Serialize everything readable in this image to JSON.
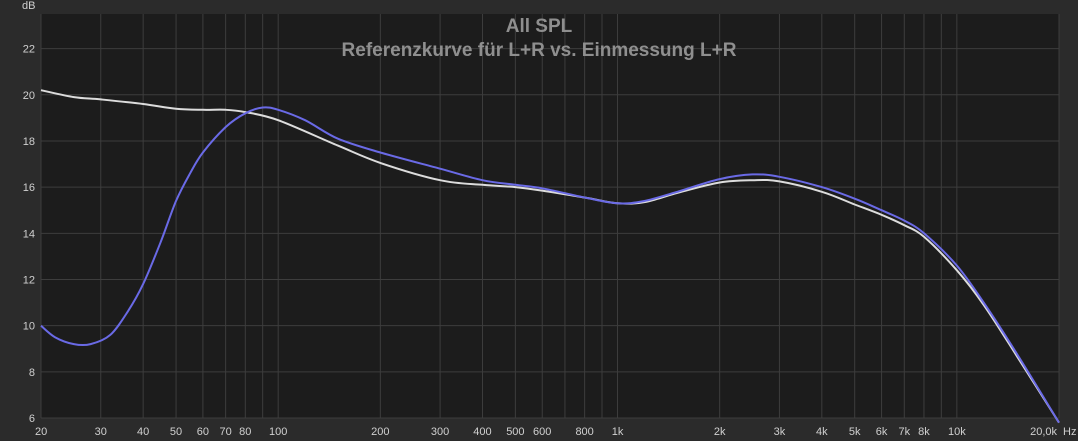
{
  "chart_data": {
    "type": "line",
    "title": "All SPL",
    "subtitle": "Referenzkurve für L+R vs. Einmessung L+R",
    "ylabel": "dB",
    "xunit": "Hz",
    "xscale": "log",
    "xlim": [
      20,
      20000
    ],
    "ylim": [
      6,
      23.5
    ],
    "grid": true,
    "x_tick_labels": [
      {
        "v": 20,
        "t": "20"
      },
      {
        "v": 30,
        "t": "30"
      },
      {
        "v": 40,
        "t": "40"
      },
      {
        "v": 50,
        "t": "50"
      },
      {
        "v": 60,
        "t": "60"
      },
      {
        "v": 70,
        "t": "70"
      },
      {
        "v": 80,
        "t": "80"
      },
      {
        "v": 100,
        "t": "100"
      },
      {
        "v": 200,
        "t": "200"
      },
      {
        "v": 300,
        "t": "300"
      },
      {
        "v": 400,
        "t": "400"
      },
      {
        "v": 500,
        "t": "500"
      },
      {
        "v": 600,
        "t": "600"
      },
      {
        "v": 800,
        "t": "800"
      },
      {
        "v": 1000,
        "t": "1k"
      },
      {
        "v": 2000,
        "t": "2k"
      },
      {
        "v": 3000,
        "t": "3k"
      },
      {
        "v": 4000,
        "t": "4k"
      },
      {
        "v": 5000,
        "t": "5k"
      },
      {
        "v": 6000,
        "t": "6k"
      },
      {
        "v": 7000,
        "t": "7k"
      },
      {
        "v": 8000,
        "t": "8k"
      },
      {
        "v": 10000,
        "t": "10k"
      },
      {
        "v": 20000,
        "t": "20,0k"
      }
    ],
    "y_ticks": [
      6,
      8,
      10,
      12,
      14,
      16,
      18,
      20,
      22
    ],
    "series": [
      {
        "color": "#6a6ae6",
        "points": [
          [
            20,
            10.0
          ],
          [
            22,
            9.5
          ],
          [
            25,
            9.2
          ],
          [
            28,
            9.2
          ],
          [
            32,
            9.6
          ],
          [
            36,
            10.6
          ],
          [
            40,
            11.8
          ],
          [
            45,
            13.6
          ],
          [
            50,
            15.4
          ],
          [
            55,
            16.6
          ],
          [
            60,
            17.5
          ],
          [
            70,
            18.6
          ],
          [
            80,
            19.2
          ],
          [
            90,
            19.45
          ],
          [
            100,
            19.35
          ],
          [
            120,
            18.9
          ],
          [
            150,
            18.1
          ],
          [
            200,
            17.5
          ],
          [
            300,
            16.8
          ],
          [
            400,
            16.3
          ],
          [
            500,
            16.1
          ],
          [
            600,
            15.95
          ],
          [
            800,
            15.55
          ],
          [
            1000,
            15.3
          ],
          [
            1200,
            15.4
          ],
          [
            1500,
            15.8
          ],
          [
            2000,
            16.35
          ],
          [
            2500,
            16.55
          ],
          [
            3000,
            16.45
          ],
          [
            4000,
            16.0
          ],
          [
            5000,
            15.5
          ],
          [
            6000,
            15.0
          ],
          [
            7000,
            14.55
          ],
          [
            8000,
            14.0
          ],
          [
            10000,
            12.6
          ],
          [
            12000,
            11.0
          ],
          [
            15000,
            8.8
          ],
          [
            20000,
            5.8
          ]
        ]
      },
      {
        "color": "#dcdcdc",
        "points": [
          [
            20,
            20.2
          ],
          [
            25,
            19.9
          ],
          [
            30,
            19.8
          ],
          [
            40,
            19.6
          ],
          [
            50,
            19.4
          ],
          [
            60,
            19.35
          ],
          [
            70,
            19.35
          ],
          [
            80,
            19.25
          ],
          [
            100,
            18.9
          ],
          [
            150,
            17.8
          ],
          [
            200,
            17.05
          ],
          [
            300,
            16.3
          ],
          [
            400,
            16.1
          ],
          [
            500,
            16.0
          ],
          [
            600,
            15.85
          ],
          [
            800,
            15.55
          ],
          [
            1000,
            15.3
          ],
          [
            1200,
            15.35
          ],
          [
            1500,
            15.75
          ],
          [
            2000,
            16.2
          ],
          [
            2500,
            16.3
          ],
          [
            3000,
            16.25
          ],
          [
            4000,
            15.8
          ],
          [
            5000,
            15.25
          ],
          [
            6000,
            14.8
          ],
          [
            7000,
            14.35
          ],
          [
            8000,
            13.85
          ],
          [
            10000,
            12.4
          ],
          [
            12000,
            10.9
          ],
          [
            15000,
            8.7
          ],
          [
            20000,
            5.8
          ]
        ]
      }
    ]
  }
}
